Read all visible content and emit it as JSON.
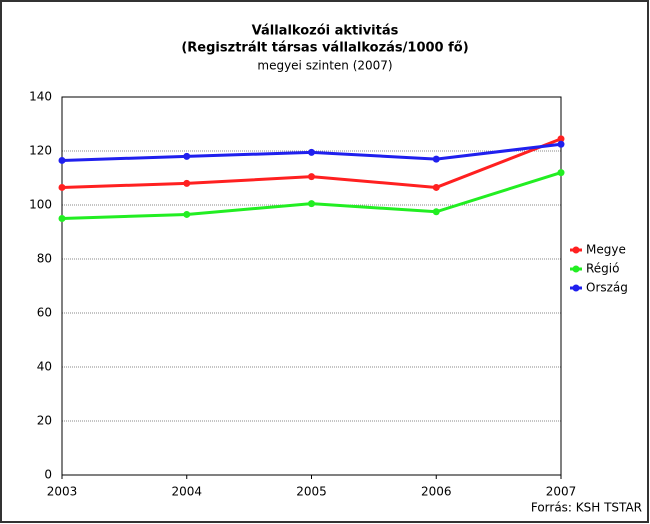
{
  "chart_data": {
    "type": "line",
    "title": [
      "Vállalkozói aktivitás",
      "(Regisztrált társas vállalkozás/1000 fő)"
    ],
    "subtitle": "megyei szinten (2007)",
    "source": "Forrás: KSH TSTAR",
    "x": [
      2003,
      2004,
      2005,
      2006,
      2007
    ],
    "xlim": [
      2003,
      2007
    ],
    "xticks": [
      2003,
      2004,
      2005,
      2006,
      2007
    ],
    "ylim": [
      0,
      140
    ],
    "yticks": [
      0,
      20,
      40,
      60,
      80,
      100,
      120,
      140
    ],
    "grid": true,
    "legend": "right",
    "series": [
      {
        "name": "Megye",
        "color": "#ff2020",
        "values": [
          106.5,
          108,
          110.5,
          106.5,
          124.5
        ]
      },
      {
        "name": "Régió",
        "color": "#22ee22",
        "values": [
          95,
          96.5,
          100.5,
          97.5,
          112
        ]
      },
      {
        "name": "Ország",
        "color": "#2020ee",
        "values": [
          116.5,
          118,
          119.5,
          117,
          122.5
        ]
      }
    ]
  }
}
